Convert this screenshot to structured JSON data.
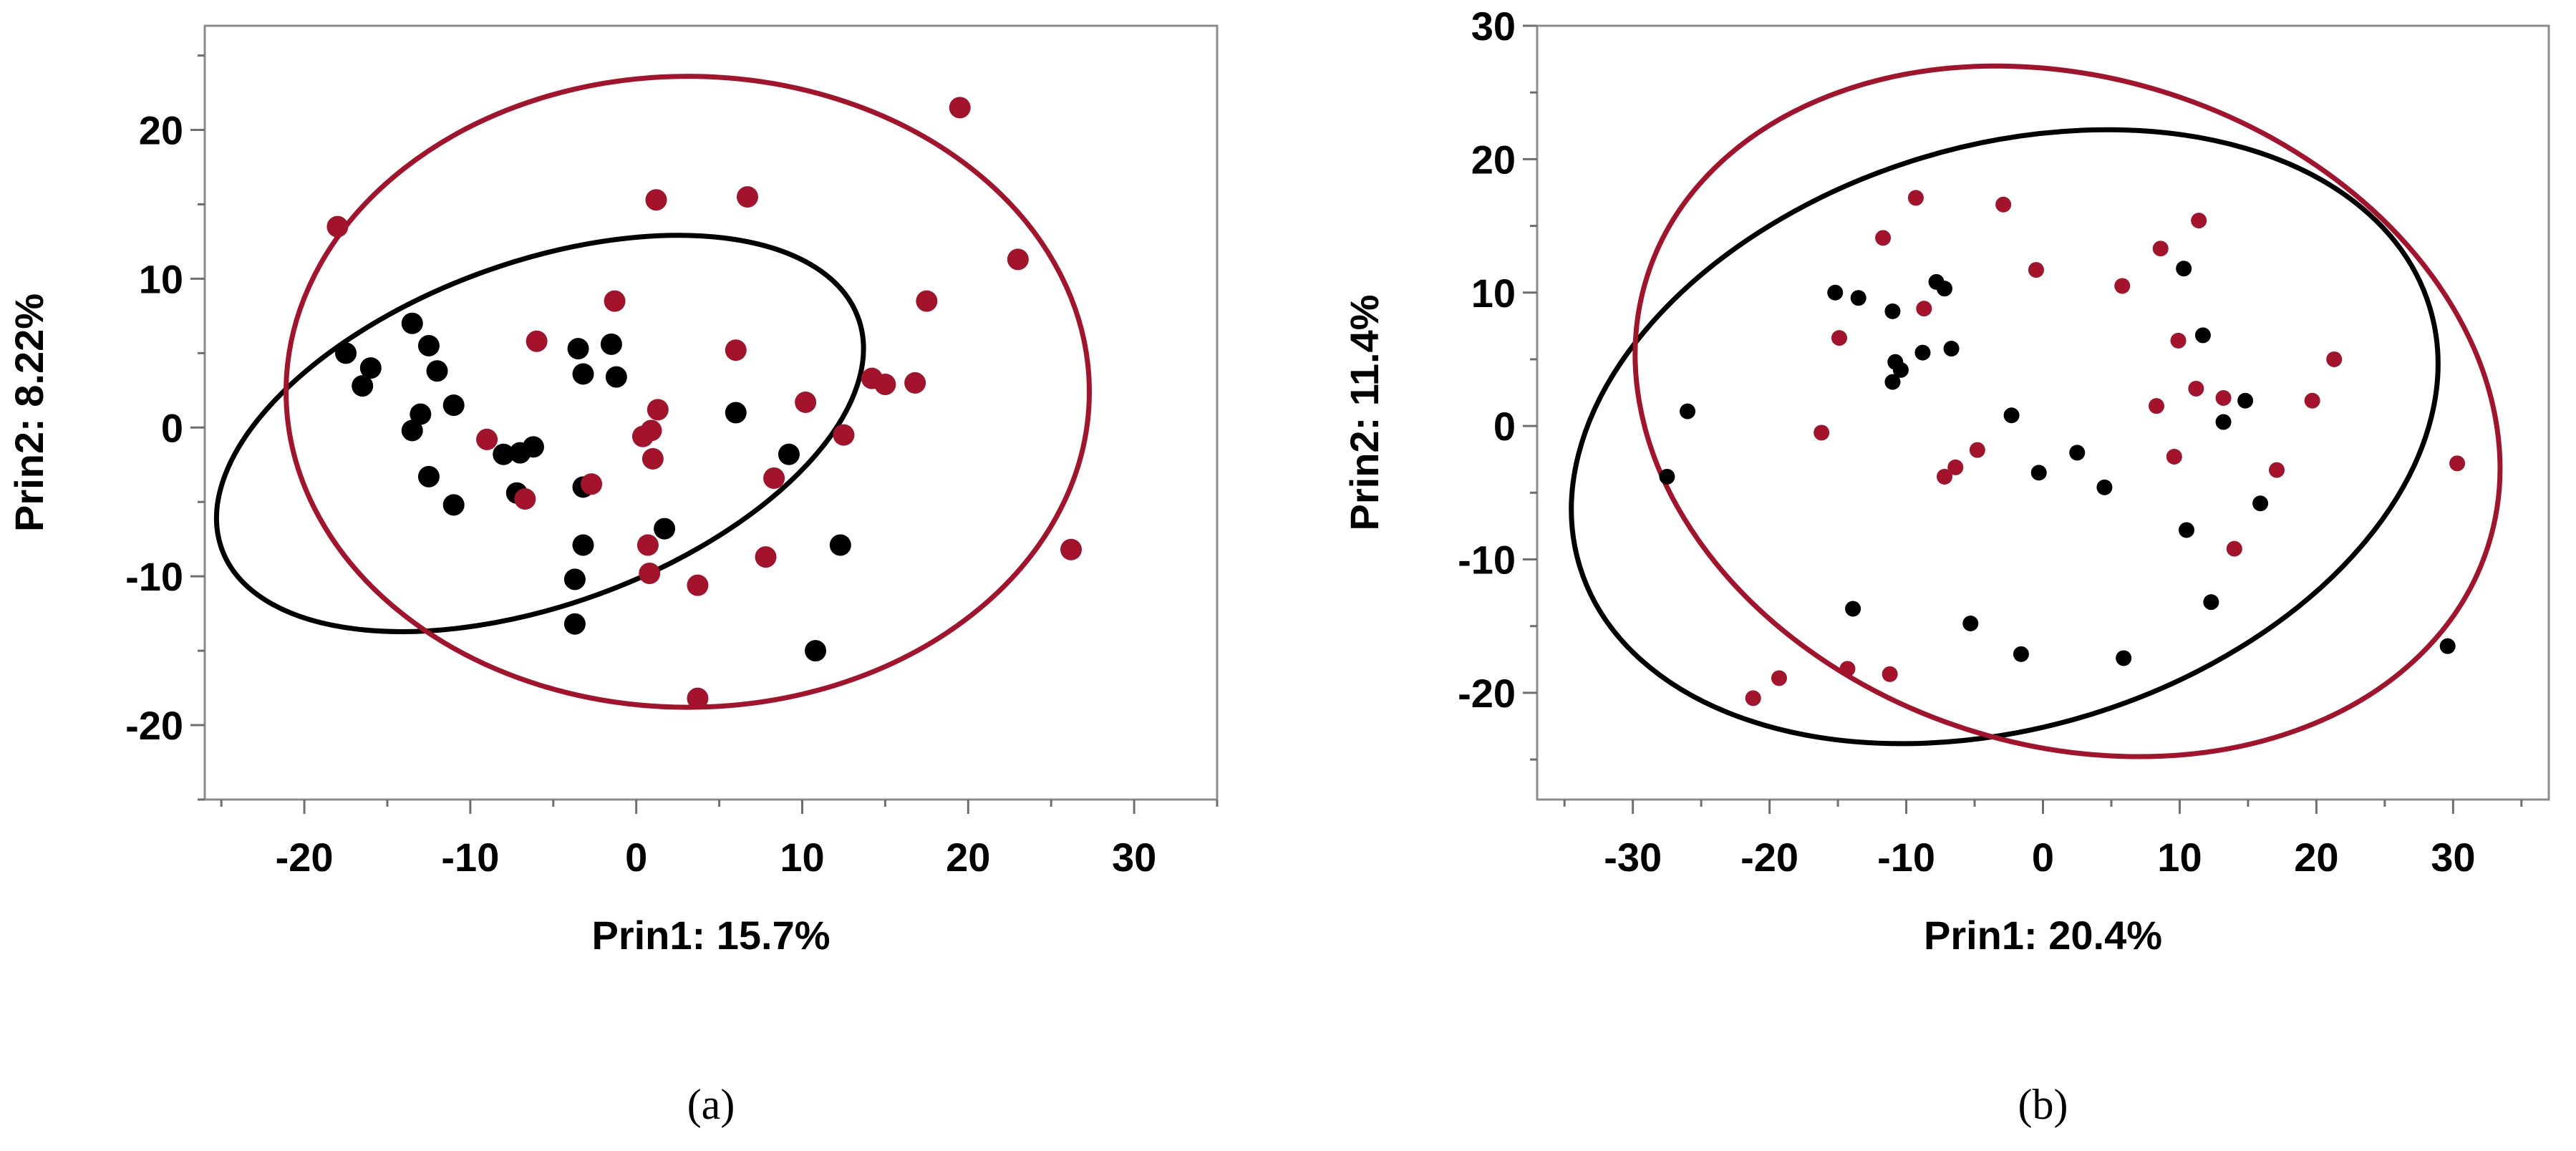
{
  "colors": {
    "group_black": "#000000",
    "group_red": "#a3132b",
    "frame": "#8c8c8c"
  },
  "chart_data": [
    {
      "type": "scatter",
      "panel_label": "(a)",
      "xlabel": "Prin1: 15.7%",
      "ylabel": "Prin2: 8.22%",
      "xlim": [
        -26,
        35
      ],
      "ylim": [
        -25,
        27
      ],
      "xticks": [
        -20,
        -10,
        0,
        10,
        20,
        30
      ],
      "yticks": [
        -20,
        -10,
        0,
        10,
        20
      ],
      "x_minor_step": 5,
      "y_minor_step": 5,
      "grid": false,
      "ellipses": [
        {
          "group": "black",
          "cx": -5.8,
          "cy": -0.4,
          "rx": 20.4,
          "ry": 11.5,
          "angle_deg": -20
        },
        {
          "group": "red",
          "cx": 3.1,
          "cy": 2.4,
          "rx": 24.2,
          "ry": 21.2,
          "angle_deg": 0
        }
      ],
      "series": [
        {
          "group": "black",
          "points": [
            [
              -17.5,
              5
            ],
            [
              -16,
              4
            ],
            [
              -16.5,
              2.8
            ],
            [
              -13.5,
              7
            ],
            [
              -12.5,
              5.5
            ],
            [
              -12,
              3.8
            ],
            [
              -13,
              0.9
            ],
            [
              -13.5,
              -0.2
            ],
            [
              -11,
              1.5
            ],
            [
              -12.5,
              -3.3
            ],
            [
              -11,
              -5.2
            ],
            [
              -8,
              -1.8
            ],
            [
              -7,
              -1.7
            ],
            [
              -6.2,
              -1.3
            ],
            [
              -7.2,
              -4.4
            ],
            [
              -3.5,
              5.3
            ],
            [
              -3.2,
              3.6
            ],
            [
              -1.5,
              5.6
            ],
            [
              -1.2,
              3.4
            ],
            [
              -3.2,
              -4
            ],
            [
              -3.2,
              -7.9
            ],
            [
              -3.7,
              -10.2
            ],
            [
              -3.7,
              -13.2
            ],
            [
              1.7,
              -6.8
            ],
            [
              6,
              1
            ],
            [
              9.2,
              -1.8
            ],
            [
              12.3,
              -7.9
            ],
            [
              10.8,
              -15
            ]
          ]
        },
        {
          "group": "red",
          "points": [
            [
              -18,
              13.5
            ],
            [
              1.2,
              15.3
            ],
            [
              6.7,
              15.5
            ],
            [
              19.5,
              21.5
            ],
            [
              23,
              11.3
            ],
            [
              17.5,
              8.5
            ],
            [
              -1.3,
              8.5
            ],
            [
              -6,
              5.8
            ],
            [
              6,
              5.2
            ],
            [
              -9,
              -0.8
            ],
            [
              -6.7,
              -4.8
            ],
            [
              -2.7,
              -3.8
            ],
            [
              1.3,
              1.2
            ],
            [
              10.2,
              1.7
            ],
            [
              12.5,
              -0.5
            ],
            [
              8.3,
              -3.4
            ],
            [
              14.2,
              3.3
            ],
            [
              15,
              2.9
            ],
            [
              16.8,
              3
            ],
            [
              0.4,
              -0.6
            ],
            [
              0.9,
              -0.2
            ],
            [
              1,
              -2.1
            ],
            [
              0.7,
              -7.9
            ],
            [
              0.8,
              -9.8
            ],
            [
              3.7,
              -10.6
            ],
            [
              7.8,
              -8.7
            ],
            [
              26.2,
              -8.2
            ],
            [
              3.7,
              -18.2
            ]
          ]
        }
      ]
    },
    {
      "type": "scatter",
      "panel_label": "(b)",
      "xlabel": "Prin1: 20.4%",
      "ylabel": "Prin2: 11.4%",
      "xlim": [
        -37,
        37
      ],
      "ylim": [
        -28,
        30
      ],
      "xticks": [
        -30,
        -20,
        -10,
        0,
        10,
        20,
        30
      ],
      "yticks": [
        -20,
        -10,
        0,
        10,
        20,
        30
      ],
      "x_minor_step": 5,
      "y_minor_step": 5,
      "grid": false,
      "ellipses": [
        {
          "group": "black",
          "cx": -2.8,
          "cy": -0.8,
          "rx": 32.5,
          "ry": 21.8,
          "angle_deg": -17
        },
        {
          "group": "red",
          "cx": 1.8,
          "cy": 1.1,
          "rx": 32.3,
          "ry": 25,
          "angle_deg": 18
        }
      ],
      "series": [
        {
          "group": "black",
          "points": [
            [
              -27.5,
              -3.8
            ],
            [
              -26,
              1.1
            ],
            [
              -15.2,
              10
            ],
            [
              -13.5,
              9.6
            ],
            [
              -11,
              8.6
            ],
            [
              -10.8,
              4.8
            ],
            [
              -10.4,
              4.2
            ],
            [
              -11,
              3.3
            ],
            [
              -8.8,
              5.5
            ],
            [
              -7.8,
              10.8
            ],
            [
              -7.2,
              10.3
            ],
            [
              -6.7,
              5.8
            ],
            [
              -2.3,
              0.8
            ],
            [
              -0.3,
              -3.5
            ],
            [
              2.5,
              -2
            ],
            [
              4.5,
              -4.6
            ],
            [
              10.3,
              11.8
            ],
            [
              11.7,
              6.8
            ],
            [
              13.2,
              0.3
            ],
            [
              14.8,
              1.9
            ],
            [
              10.5,
              -7.8
            ],
            [
              15.9,
              -5.8
            ],
            [
              12.3,
              -13.2
            ],
            [
              -13.9,
              -13.7
            ],
            [
              -5.3,
              -14.8
            ],
            [
              -1.6,
              -17.1
            ],
            [
              5.9,
              -17.4
            ],
            [
              29.6,
              -16.5
            ]
          ]
        },
        {
          "group": "red",
          "points": [
            [
              -9.3,
              17.1
            ],
            [
              -2.9,
              16.6
            ],
            [
              -11.7,
              14.1
            ],
            [
              -0.5,
              11.7
            ],
            [
              -8.7,
              8.8
            ],
            [
              -14.9,
              6.6
            ],
            [
              -16.2,
              -0.5
            ],
            [
              -7.2,
              -3.8
            ],
            [
              -6.4,
              -3.1
            ],
            [
              -4.8,
              -1.8
            ],
            [
              5.8,
              10.5
            ],
            [
              8.6,
              13.3
            ],
            [
              11.4,
              15.4
            ],
            [
              9.9,
              6.4
            ],
            [
              11.2,
              2.8
            ],
            [
              13.2,
              2.1
            ],
            [
              21.3,
              5
            ],
            [
              19.7,
              1.9
            ],
            [
              8.3,
              1.5
            ],
            [
              9.6,
              -2.3
            ],
            [
              17.1,
              -3.3
            ],
            [
              14,
              -9.2
            ],
            [
              30.3,
              -2.8
            ],
            [
              -21.2,
              -20.4
            ],
            [
              -19.3,
              -18.9
            ],
            [
              -14.3,
              -18.2
            ],
            [
              -11.2,
              -18.6
            ]
          ]
        }
      ]
    }
  ]
}
